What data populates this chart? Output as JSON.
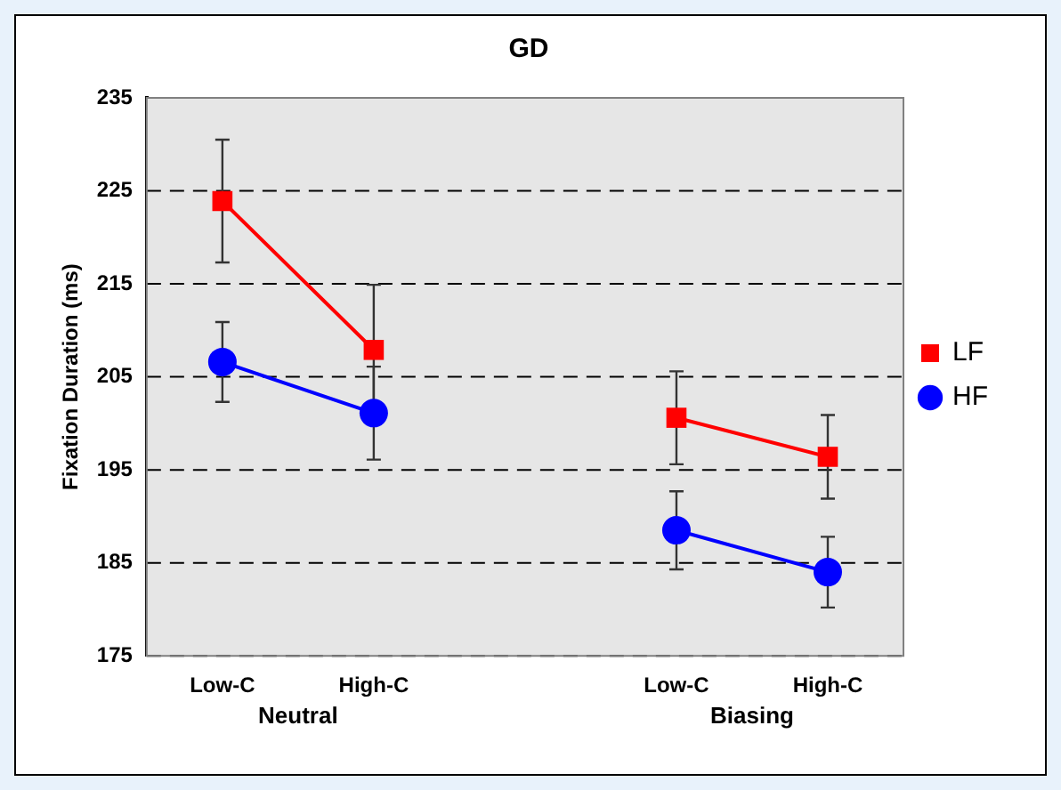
{
  "chart_data": {
    "type": "line",
    "title": "GD",
    "ylabel": "Fixation Duration (ms)",
    "categories": [
      "Low-C",
      "High-C",
      null,
      "Low-C",
      "High-C"
    ],
    "annotations": [
      "Neutral",
      "Biasing"
    ],
    "series": [
      {
        "name": "LF",
        "color": "#ff0000",
        "marker": "square",
        "values": [
          223.9,
          207.9,
          null,
          200.6,
          196.4
        ],
        "errors": [
          6.6,
          7,
          null,
          5,
          4.5
        ]
      },
      {
        "name": "HF",
        "color": "#0000ff",
        "marker": "circle",
        "values": [
          206.6,
          201.1,
          null,
          188.5,
          184
        ],
        "errors": [
          4.3,
          5,
          null,
          4.2,
          3.8
        ]
      }
    ],
    "ylim": [
      175,
      235
    ],
    "yticks": [
      175,
      185,
      195,
      205,
      215,
      225,
      235
    ],
    "grid": "y",
    "legend": "right"
  }
}
